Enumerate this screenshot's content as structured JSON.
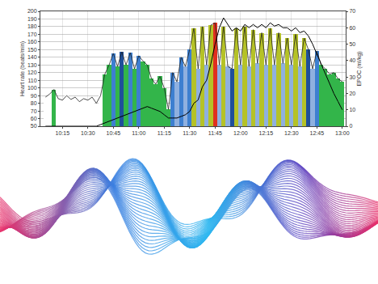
{
  "chart_data": {
    "type": "bar",
    "ylabel": "Heart rate (beats/min)",
    "y2label": "EPOC (ml/kg)",
    "x": [
      605,
      607.5,
      610,
      612.5,
      615,
      617.5,
      620,
      622.5,
      625,
      627.5,
      630,
      632.5,
      635,
      637.5,
      640,
      642.5,
      645,
      647.5,
      650,
      652.5,
      655,
      657.5,
      660,
      662.5,
      665,
      667.5,
      670,
      672.5,
      675,
      677.5,
      680,
      682.5,
      685,
      687.5,
      690,
      692.5,
      695,
      697.5,
      700,
      702.5,
      705,
      707.5,
      710,
      712.5,
      715,
      717.5,
      720,
      722.5,
      725,
      727.5,
      730,
      732.5,
      735,
      737.5,
      740,
      742.5,
      745,
      747.5,
      750,
      752.5,
      755,
      757.5,
      760,
      762.5,
      765,
      767.5,
      770,
      772.5,
      775,
      777.5,
      780
    ],
    "xlim": [
      602,
      782
    ],
    "xticks": [
      {
        "value": 615,
        "label": "10:15"
      },
      {
        "value": 630,
        "label": "10:30"
      },
      {
        "value": 645,
        "label": "10:45"
      },
      {
        "value": 660,
        "label": "11:00"
      },
      {
        "value": 675,
        "label": "11:15"
      },
      {
        "value": 690,
        "label": "11:30"
      },
      {
        "value": 705,
        "label": "11:45"
      },
      {
        "value": 720,
        "label": "12:00"
      },
      {
        "value": 735,
        "label": "12:15"
      },
      {
        "value": 750,
        "label": "12:30"
      },
      {
        "value": 765,
        "label": "12:45"
      },
      {
        "value": 780,
        "label": "13:00"
      }
    ],
    "ylim": [
      50,
      200
    ],
    "yticks": [
      50,
      60,
      70,
      80,
      90,
      100,
      110,
      120,
      130,
      140,
      150,
      160,
      170,
      180,
      190,
      200
    ],
    "y2lim": [
      0,
      70
    ],
    "y2ticks": [
      0,
      10,
      20,
      30,
      40,
      50,
      60,
      70
    ],
    "grid": true,
    "series": [
      {
        "type": "bar",
        "values": [
          88,
          92,
          98,
          86,
          84,
          90,
          85,
          88,
          82,
          86,
          84,
          88,
          80,
          90,
          118,
          130,
          145,
          128,
          147,
          130,
          146,
          125,
          142,
          135,
          130,
          112,
          105,
          115,
          100,
          72,
          120,
          108,
          140,
          128,
          150,
          178,
          125,
          180,
          130,
          182,
          185,
          130,
          180,
          128,
          125,
          178,
          130,
          180,
          128,
          176,
          132,
          172,
          130,
          178,
          130,
          172,
          132,
          165,
          130,
          170,
          128,
          165,
          150,
          125,
          148,
          130,
          125,
          118,
          120,
          112,
          108
        ],
        "colors": [
          "#ffffff",
          "#ffffff",
          "#33b54a",
          "#ffffff",
          "#ffffff",
          "#ffffff",
          "#ffffff",
          "#ffffff",
          "#ffffff",
          "#ffffff",
          "#ffffff",
          "#ffffff",
          "#ffffff",
          "#ffffff",
          "#33b54a",
          "#33b54a",
          "#3d7fd0",
          "#33b54a",
          "#1f4f9a",
          "#33b54a",
          "#3d7fd0",
          "#33b54a",
          "#3d7fd0",
          "#33b54a",
          "#33b54a",
          "#33b54a",
          "#33b54a",
          "#33b54a",
          "#33b54a",
          "#33b54a",
          "#3d7fd0",
          "#8fb0df",
          "#3d7fd0",
          "#8fb0df",
          "#3d7fd0",
          "#b5c227",
          "#8fb0df",
          "#b5c227",
          "#8fb0df",
          "#b5c227",
          "#e0301e",
          "#8fb0df",
          "#b5c227",
          "#8fb0df",
          "#1f4f9a",
          "#b5c227",
          "#8fb0df",
          "#b5c227",
          "#8fb0df",
          "#b5c227",
          "#8fb0df",
          "#b5c227",
          "#8fb0df",
          "#b5c227",
          "#8fb0df",
          "#b5c227",
          "#8fb0df",
          "#b5c227",
          "#8fb0df",
          "#b5c227",
          "#8fb0df",
          "#b5c227",
          "#1f4f9a",
          "#8fb0df",
          "#3d7fd0",
          "#33b54a",
          "#33b54a",
          "#33b54a",
          "#33b54a",
          "#33b54a",
          "#33b54a"
        ]
      },
      {
        "type": "line",
        "axis": "y2",
        "color": "#000000",
        "values": [
          0,
          0,
          0,
          0,
          0,
          0,
          0,
          0,
          0,
          0,
          0,
          0,
          0,
          1,
          2,
          3,
          4,
          5,
          6,
          7,
          8,
          9,
          10,
          11,
          12,
          11,
          10,
          9,
          7,
          5,
          5,
          5,
          6,
          7,
          9,
          14,
          16,
          24,
          28,
          38,
          50,
          60,
          66,
          62,
          58,
          60,
          58,
          62,
          60,
          62,
          60,
          62,
          60,
          63,
          61,
          62,
          60,
          60,
          58,
          60,
          57,
          58,
          55,
          50,
          44,
          38,
          32,
          26,
          20,
          15,
          10
        ]
      }
    ]
  }
}
